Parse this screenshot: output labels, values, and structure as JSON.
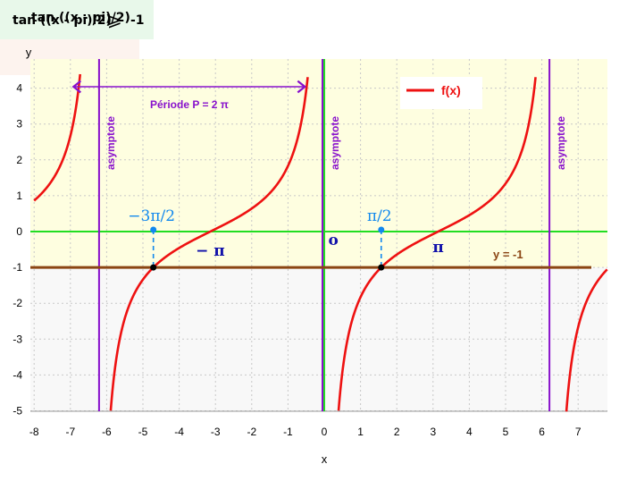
{
  "header": {
    "inequality_expr": "tan ((x - pi)/2)",
    "inequality_symbol": "⩾",
    "inequality_rhs": "-1",
    "function_expr": "tan ((x - pi)/2)"
  },
  "chart_data": {
    "type": "line",
    "xlabel": "x",
    "ylabel": "y",
    "xlim": [
      -8,
      7.8
    ],
    "ylim": [
      -5,
      4.4
    ],
    "x_ticks": [
      "-8",
      "-7",
      "-6",
      "-5",
      "-4",
      "-3",
      "-2",
      "-1",
      "0",
      "1",
      "2",
      "3",
      "4",
      "5",
      "6",
      "7"
    ],
    "y_ticks": [
      "4",
      "3",
      "2",
      "1",
      "0",
      "-1",
      "-2",
      "-3",
      "-4",
      "-5"
    ],
    "grid": true,
    "series": [
      {
        "name": "f(x)",
        "expression": "tan((x - pi)/2)",
        "color": "#ee1111"
      },
      {
        "name": "y = -1",
        "constant": -1,
        "color": "#8b4513"
      }
    ],
    "asymptotes_x": [
      -6.2832,
      0,
      6.2832
    ],
    "asymptote_label": "asymptote",
    "period_label": "Période P = 2 π",
    "period_range": [
      -6.2832,
      -0.5
    ],
    "marked_points": [
      {
        "x": -4.7124,
        "y": -1,
        "label": "−3π/2"
      },
      {
        "x": 1.5708,
        "y": -1,
        "label": "π/2"
      }
    ],
    "annotations": [
      {
        "text": "− π",
        "x": -3.1416,
        "y": -0.55
      },
      {
        "text": "o",
        "x": 0.25,
        "y": -0.25
      },
      {
        "text": "π",
        "x": 3.1416,
        "y": -0.45
      }
    ],
    "legend_label": "f(x)",
    "hline_label": "y = -1",
    "legend_position": "top-right",
    "colors": {
      "plot_bg_upper": "#fefee0",
      "plot_bg_lower": "#f8f8f8",
      "grid": "#c8c8c8",
      "axis": "#22dd22",
      "asymptote": "#8811cc",
      "period": "#8811cc",
      "marker": "#1188ee",
      "annotation": "#1111aa",
      "hline": "#8b4513"
    }
  }
}
